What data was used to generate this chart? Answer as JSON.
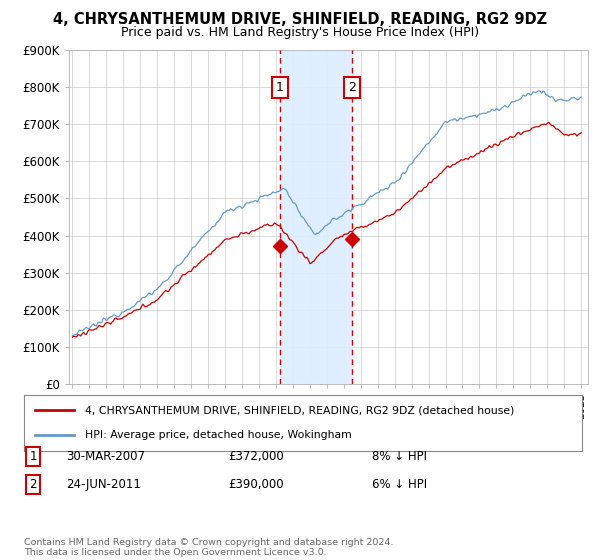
{
  "title": "4, CHRYSANTHEMUM DRIVE, SHINFIELD, READING, RG2 9DZ",
  "subtitle": "Price paid vs. HM Land Registry's House Price Index (HPI)",
  "ylim": [
    0,
    900000
  ],
  "yticks": [
    0,
    100000,
    200000,
    300000,
    400000,
    500000,
    600000,
    700000,
    800000,
    900000
  ],
  "ytick_labels": [
    "£0",
    "£100K",
    "£200K",
    "£300K",
    "£400K",
    "£500K",
    "£600K",
    "£700K",
    "£800K",
    "£900K"
  ],
  "sale1_date": 2007.23,
  "sale1_price": 372000,
  "sale2_date": 2011.48,
  "sale2_price": 390000,
  "legend_line1": "4, CHRYSANTHEMUM DRIVE, SHINFIELD, READING, RG2 9DZ (detached house)",
  "legend_line2": "HPI: Average price, detached house, Wokingham",
  "footnote": "Contains HM Land Registry data © Crown copyright and database right 2024.\nThis data is licensed under the Open Government Licence v3.0.",
  "sale_color": "#cc0000",
  "hpi_color": "#6699cc",
  "shade_color": "#ddeeff",
  "background_color": "#ffffff",
  "grid_color": "#cccccc",
  "row1": [
    "1",
    "30-MAR-2007",
    "£372,000",
    "8% ↓ HPI"
  ],
  "row2": [
    "2",
    "24-JUN-2011",
    "£390,000",
    "6% ↓ HPI"
  ]
}
